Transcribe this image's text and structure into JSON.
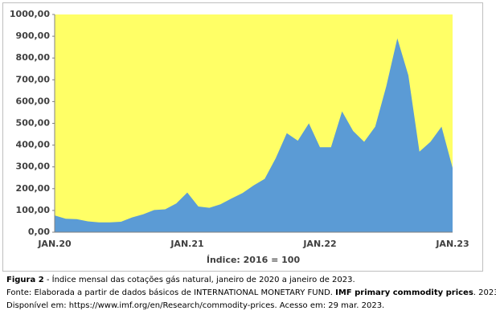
{
  "chart_data": {
    "type": "area",
    "categories": [
      "JAN.20",
      null,
      null,
      null,
      null,
      null,
      null,
      null,
      null,
      null,
      null,
      null,
      "JAN.21",
      null,
      null,
      null,
      null,
      null,
      null,
      null,
      null,
      null,
      null,
      null,
      "JAN.22",
      null,
      null,
      null,
      null,
      null,
      null,
      null,
      null,
      null,
      null,
      null,
      "JAN.23"
    ],
    "series": [
      {
        "color": "#5b9bd5",
        "values": [
          77,
          62,
          60,
          50,
          45,
          45,
          48,
          68,
          82,
          102,
          105,
          132,
          182,
          118,
          112,
          128,
          155,
          180,
          215,
          245,
          340,
          455,
          420,
          500,
          390,
          390,
          555,
          465,
          415,
          485,
          670,
          890,
          720,
          370,
          415,
          485,
          295
        ]
      }
    ],
    "x_label": "Índice: 2016 = 100",
    "ylim": [
      0,
      1000
    ],
    "yticks": [
      {
        "value": 0,
        "label": "0,00"
      },
      {
        "value": 100,
        "label": "100,00"
      },
      {
        "value": 200,
        "label": "200,00"
      },
      {
        "value": 300,
        "label": "300,00"
      },
      {
        "value": 400,
        "label": "400,00"
      },
      {
        "value": 500,
        "label": "500,00"
      },
      {
        "value": 600,
        "label": "600,00"
      },
      {
        "value": 700,
        "label": "700,00"
      },
      {
        "value": 800,
        "label": "800,00"
      },
      {
        "value": 900,
        "label": "900,00"
      },
      {
        "value": 1000,
        "label": "1000,00"
      }
    ],
    "plot_background": "#ffff66",
    "grid": false
  },
  "caption": {
    "figure": "Figura 2",
    "title": " - Índice mensal das cotações gás natural, janeiro de 2020 a janeiro de 2023.",
    "source_prefix": "Fonte: Elaborada a partir de dados básicos de INTERNATIONAL MONETARY FUND. ",
    "source_title": "IMF primary commodity prices",
    "source_suffix": ". 2023.",
    "availability": "Disponível em: https://www.imf.org/en/Research/commodity-prices. Acesso em: 29 mar. 2023."
  }
}
